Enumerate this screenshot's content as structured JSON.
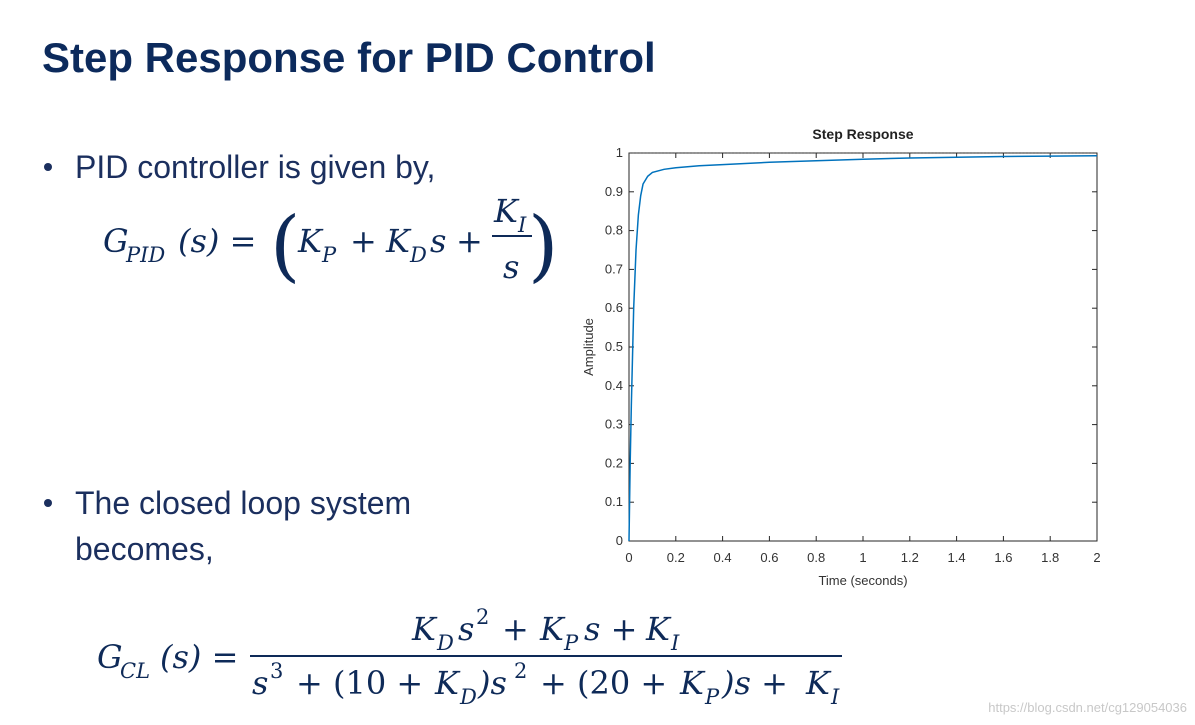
{
  "header": {
    "title": "Step Response for  PID Control"
  },
  "bullets": [
    {
      "lines": [
        "PID controller is given by,"
      ]
    },
    {
      "lines": [
        "The closed loop system",
        "becomes,"
      ]
    }
  ],
  "pid_formula": [
    "G",
    "PID",
    "(s) =",
    "(",
    "K",
    "P",
    "+",
    "K",
    "D",
    "s",
    "+",
    "K",
    "I",
    "s",
    ")"
  ],
  "closed_loop_formula": {
    "lhs": [
      "G",
      "CL",
      "(s) ="
    ],
    "numerator": [
      "K",
      "D",
      "s",
      "2",
      "+",
      "K",
      "P",
      "s +",
      "K",
      "I"
    ],
    "denominator": [
      "s",
      "3",
      "+ (10 +",
      "K",
      "D",
      ")s",
      "2",
      "+ (20 +",
      "K",
      "P",
      ")s +",
      "K",
      "I"
    ]
  },
  "watermark": "https://blog.csdn.net/cg129054036",
  "chart_data": {
    "type": "line",
    "title": "Step Response",
    "x_label": "Time (seconds)",
    "y_label": "Amplitude",
    "x": [
      0,
      0.005,
      0.01,
      0.02,
      0.03,
      0.04,
      0.05,
      0.06,
      0.08,
      0.1,
      0.15,
      0.2,
      0.3,
      0.4,
      0.6,
      0.8,
      1.0,
      1.2,
      1.4,
      1.6,
      1.8,
      2.0
    ],
    "values": [
      0,
      0.2,
      0.35,
      0.6,
      0.75,
      0.84,
      0.89,
      0.92,
      0.94,
      0.95,
      0.958,
      0.962,
      0.967,
      0.97,
      0.976,
      0.98,
      0.984,
      0.987,
      0.989,
      0.991,
      0.992,
      0.993
    ],
    "color": "#0072bd",
    "steady_state": 1,
    "xlim": [
      0,
      2
    ],
    "xticks": [
      0,
      0.2,
      0.4,
      0.6,
      0.8,
      1,
      1.2,
      1.4,
      1.6,
      1.8,
      2
    ],
    "ylim": [
      0,
      1
    ],
    "yticks": [
      0,
      0.1,
      0.2,
      0.3,
      0.4,
      0.5,
      0.6,
      0.7,
      0.8,
      0.9,
      1
    ],
    "grid": false
  }
}
